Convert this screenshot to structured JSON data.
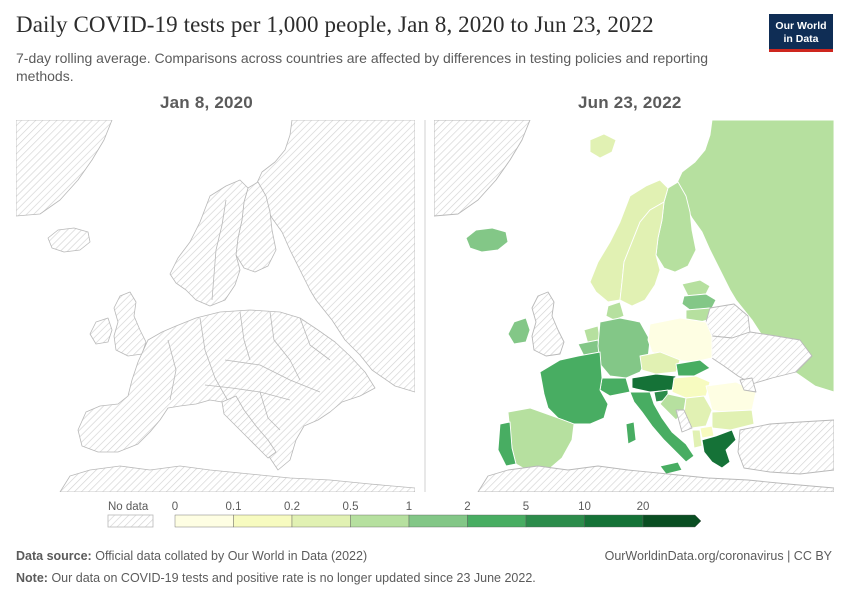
{
  "title": "Daily COVID-19 tests per 1,000 people, Jan 8, 2020 to Jun 23, 2022",
  "subtitle": "7-day rolling average. Comparisons across countries are affected by differences in testing policies and reporting methods.",
  "logo": {
    "line1": "Our World",
    "line2": "in Data"
  },
  "panels": {
    "left_date": "Jan 8, 2020",
    "right_date": "Jun 23, 2022"
  },
  "legend": {
    "no_data_label": "No data",
    "ticks": [
      "0",
      "0.1",
      "0.2",
      "0.5",
      "1",
      "2",
      "5",
      "10",
      "20"
    ],
    "colors": [
      "#fefee3",
      "#f7fbc0",
      "#e1f1b3",
      "#b6e09f",
      "#83c787",
      "#48ad62",
      "#2c8c4b",
      "#157237",
      "#0a4e22"
    ],
    "no_data_color": "#eeeeee"
  },
  "map_data": {
    "left_panel": {
      "all_regions": "No data"
    },
    "right_panel": {
      "Russia": "0.5-1",
      "Finland": "0.5-1",
      "Sweden": "0.2-0.5",
      "Norway": "0.2-0.5",
      "Iceland": "2-5",
      "Ireland": "2-5",
      "Estonia": "0.5-1",
      "Latvia": "1-2",
      "Lithuania": "0.5-1",
      "Poland": "0-0.1",
      "Germany": "1-2",
      "Denmark": "0.5-1",
      "Netherlands": "0.5-1",
      "Belgium": "1-2",
      "France": "2-5",
      "Spain": "0.5-1",
      "Portugal": "2-5",
      "Switzerland": "2-5",
      "Austria": "10-20",
      "Italy": "2-5",
      "Czechia": "0.2-0.5",
      "Slovakia": "2-5",
      "Hungary": "0.1-0.2",
      "Slovenia": "5-10",
      "Croatia": "0.5-1",
      "Serbia": "0.2-0.5",
      "Romania": "0-0.1",
      "Bulgaria": "0.2-0.5",
      "Greece": "5-10",
      "Cyprus": "5-10",
      "Ukraine": "No data",
      "Belarus": "No data",
      "United Kingdom": "No data"
    }
  },
  "footer": {
    "source_label": "Data source:",
    "source_text": "Official data collated by Our World in Data (2022)",
    "url": "OurWorldinData.org/coronavirus | CC BY",
    "note_label": "Note:",
    "note_text": "Our data on COVID-19 tests and positive rate is no longer updated since 23 June 2022."
  }
}
